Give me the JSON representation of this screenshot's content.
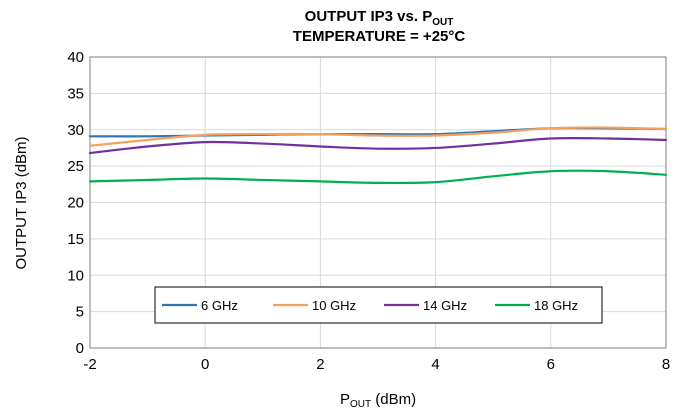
{
  "chart_data": {
    "type": "line",
    "title": {
      "line1_main": "OUTPUT IP3 vs. P",
      "line1_sub": "OUT",
      "line2": "TEMPERATURE = +25°C"
    },
    "xlabel": {
      "main": "P",
      "sub": "OUT",
      "suffix": " (dBm)"
    },
    "ylabel": "OUTPUT IP3 (dBm)",
    "xlim": [
      -2,
      8
    ],
    "ylim": [
      0,
      40
    ],
    "xticks": [
      -2,
      0,
      2,
      4,
      6,
      8
    ],
    "yticks": [
      0,
      5,
      10,
      15,
      20,
      25,
      30,
      35,
      40
    ],
    "grid": true,
    "legend_position": "bottom-center",
    "series": [
      {
        "name": "6 GHz",
        "color": "#2e75b6",
        "x": [
          -2,
          -1,
          0,
          1,
          2,
          3,
          4,
          5,
          6,
          7,
          8
        ],
        "y": [
          29.1,
          29.1,
          29.2,
          29.3,
          29.4,
          29.4,
          29.4,
          29.8,
          30.2,
          30.2,
          30.1
        ]
      },
      {
        "name": "10 GHz",
        "color": "#f4a25b",
        "x": [
          -2,
          -1,
          0,
          1,
          2,
          3,
          4,
          5,
          6,
          7,
          8
        ],
        "y": [
          27.8,
          28.6,
          29.3,
          29.4,
          29.4,
          29.2,
          29.2,
          29.6,
          30.2,
          30.3,
          30.1
        ]
      },
      {
        "name": "14 GHz",
        "color": "#7030a0",
        "x": [
          -2,
          -1,
          0,
          1,
          2,
          3,
          4,
          5,
          6,
          7,
          8
        ],
        "y": [
          26.8,
          27.7,
          28.3,
          28.1,
          27.7,
          27.4,
          27.5,
          28.1,
          28.8,
          28.8,
          28.6
        ]
      },
      {
        "name": "18 GHz",
        "color": "#00b050",
        "x": [
          -2,
          -1,
          0,
          1,
          2,
          3,
          4,
          5,
          6,
          7,
          8
        ],
        "y": [
          22.9,
          23.1,
          23.3,
          23.1,
          22.9,
          22.7,
          22.8,
          23.6,
          24.3,
          24.3,
          23.8
        ]
      }
    ]
  }
}
